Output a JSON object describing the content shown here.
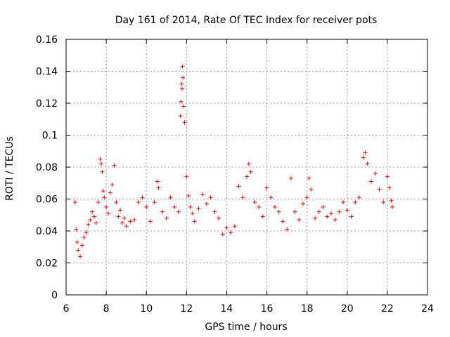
{
  "chart_data": {
    "type": "scatter",
    "title": "Day 161 of 2014, Rate Of TEC Index for receiver pots",
    "xlabel": "GPS time / hours",
    "ylabel": "ROTI / TECUs",
    "xlim": [
      6,
      24
    ],
    "ylim": [
      0,
      0.16
    ],
    "x_ticks": [
      6,
      8,
      10,
      12,
      14,
      16,
      18,
      20,
      22,
      24
    ],
    "x_tick_labels": [
      "6",
      "8",
      "10",
      "12",
      "14",
      "16",
      "18",
      "20",
      "22",
      "24"
    ],
    "y_ticks": [
      0,
      0.02,
      0.04,
      0.06,
      0.08,
      0.1,
      0.12,
      0.14,
      0.16
    ],
    "y_tick_labels": [
      "0",
      "0.02",
      "0.04",
      "0.06",
      "0.08",
      "0.1",
      "0.12",
      "0.14",
      "0.16"
    ],
    "grid": true,
    "marker": "+",
    "series": [
      {
        "name": "ROTI",
        "color": "#ff0000",
        "points": [
          [
            6.45,
            0.058
          ],
          [
            6.5,
            0.041
          ],
          [
            6.55,
            0.033
          ],
          [
            6.6,
            0.028
          ],
          [
            6.7,
            0.024
          ],
          [
            6.8,
            0.031
          ],
          [
            6.9,
            0.036
          ],
          [
            7.0,
            0.039
          ],
          [
            7.1,
            0.044
          ],
          [
            7.2,
            0.047
          ],
          [
            7.3,
            0.052
          ],
          [
            7.4,
            0.049
          ],
          [
            7.5,
            0.045
          ],
          [
            7.6,
            0.058
          ],
          [
            7.7,
            0.085
          ],
          [
            7.75,
            0.082
          ],
          [
            7.8,
            0.077
          ],
          [
            7.85,
            0.065
          ],
          [
            7.9,
            0.061
          ],
          [
            8.0,
            0.055
          ],
          [
            8.1,
            0.051
          ],
          [
            8.2,
            0.064
          ],
          [
            8.3,
            0.069
          ],
          [
            8.4,
            0.081
          ],
          [
            8.5,
            0.058
          ],
          [
            8.6,
            0.049
          ],
          [
            8.7,
            0.053
          ],
          [
            8.8,
            0.045
          ],
          [
            8.9,
            0.048
          ],
          [
            9.0,
            0.043
          ],
          [
            9.2,
            0.046
          ],
          [
            9.4,
            0.047
          ],
          [
            9.6,
            0.058
          ],
          [
            9.8,
            0.061
          ],
          [
            10.0,
            0.055
          ],
          [
            10.2,
            0.046
          ],
          [
            10.4,
            0.058
          ],
          [
            10.55,
            0.071
          ],
          [
            10.6,
            0.067
          ],
          [
            10.8,
            0.052
          ],
          [
            11.0,
            0.048
          ],
          [
            11.2,
            0.061
          ],
          [
            11.4,
            0.055
          ],
          [
            11.6,
            0.052
          ],
          [
            11.7,
            0.112
          ],
          [
            11.72,
            0.121
          ],
          [
            11.75,
            0.132
          ],
          [
            11.78,
            0.129
          ],
          [
            11.8,
            0.143
          ],
          [
            11.82,
            0.136
          ],
          [
            11.85,
            0.118
          ],
          [
            11.9,
            0.108
          ],
          [
            12.0,
            0.074
          ],
          [
            12.1,
            0.062
          ],
          [
            12.2,
            0.055
          ],
          [
            12.3,
            0.051
          ],
          [
            12.4,
            0.046
          ],
          [
            12.6,
            0.054
          ],
          [
            12.8,
            0.063
          ],
          [
            13.0,
            0.057
          ],
          [
            13.2,
            0.061
          ],
          [
            13.4,
            0.052
          ],
          [
            13.6,
            0.048
          ],
          [
            13.8,
            0.038
          ],
          [
            14.0,
            0.042
          ],
          [
            14.2,
            0.039
          ],
          [
            14.4,
            0.043
          ],
          [
            14.6,
            0.068
          ],
          [
            14.8,
            0.061
          ],
          [
            15.0,
            0.074
          ],
          [
            15.1,
            0.082
          ],
          [
            15.2,
            0.077
          ],
          [
            15.4,
            0.058
          ],
          [
            15.6,
            0.055
          ],
          [
            15.8,
            0.049
          ],
          [
            16.0,
            0.067
          ],
          [
            16.2,
            0.061
          ],
          [
            16.4,
            0.055
          ],
          [
            16.6,
            0.052
          ],
          [
            16.8,
            0.046
          ],
          [
            17.0,
            0.041
          ],
          [
            17.2,
            0.073
          ],
          [
            17.4,
            0.052
          ],
          [
            17.6,
            0.047
          ],
          [
            17.8,
            0.057
          ],
          [
            18.0,
            0.061
          ],
          [
            18.1,
            0.073
          ],
          [
            18.2,
            0.066
          ],
          [
            18.4,
            0.048
          ],
          [
            18.6,
            0.052
          ],
          [
            18.8,
            0.055
          ],
          [
            19.0,
            0.049
          ],
          [
            19.2,
            0.051
          ],
          [
            19.4,
            0.047
          ],
          [
            19.6,
            0.052
          ],
          [
            19.8,
            0.058
          ],
          [
            20.0,
            0.053
          ],
          [
            20.2,
            0.049
          ],
          [
            20.4,
            0.058
          ],
          [
            20.6,
            0.061
          ],
          [
            20.8,
            0.086
          ],
          [
            20.9,
            0.089
          ],
          [
            21.0,
            0.082
          ],
          [
            21.2,
            0.071
          ],
          [
            21.4,
            0.076
          ],
          [
            21.6,
            0.066
          ],
          [
            21.8,
            0.058
          ],
          [
            22.0,
            0.074
          ],
          [
            22.1,
            0.067
          ],
          [
            22.2,
            0.059
          ],
          [
            22.25,
            0.055
          ]
        ]
      }
    ]
  }
}
